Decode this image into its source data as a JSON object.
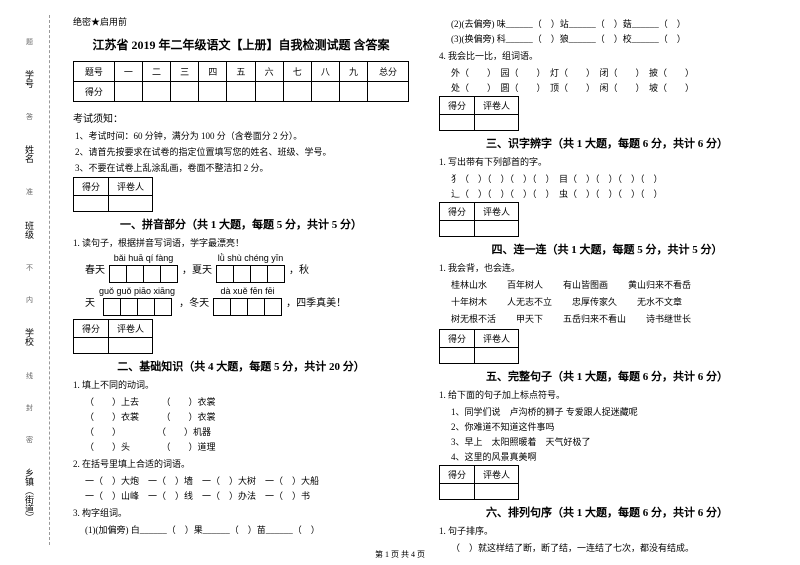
{
  "binding": {
    "fields": [
      "学号",
      "姓名",
      "班级",
      "学校",
      "乡镇（街道）"
    ],
    "marks": [
      "题",
      "答",
      "准",
      "不",
      "内",
      "线",
      "封",
      "密"
    ]
  },
  "secret": "绝密★启用前",
  "title": "江苏省 2019 年二年级语文【上册】自我检测试题 含答案",
  "scoreHeaders": [
    "题号",
    "一",
    "二",
    "三",
    "四",
    "五",
    "六",
    "七",
    "八",
    "九",
    "总分"
  ],
  "scoreRow2": "得分",
  "noticeTitle": "考试须知：",
  "notices": [
    "1、考试时间：60 分钟，满分为 100 分（含卷面分 2 分）。",
    "2、请首先按要求在试卷的指定位置填写您的姓名、班级、学号。",
    "3、不要在试卷上乱涂乱画，卷面不整洁扣 2 分。"
  ],
  "scorebox": {
    "col1": "得分",
    "col2": "评卷人"
  },
  "sections": {
    "s1": "一、拼音部分（共 1 大题，每题 5 分，共计 5 分）",
    "s2": "二、基础知识（共 4 大题，每题 5 分，共计 20 分）",
    "s3": "三、识字辨字（共 1 大题，每题 6 分，共计 6 分）",
    "s4": "四、连一连（共 1 大题，每题 5 分，共计 5 分）",
    "s5": "五、完整句子（共 1 大题，每题 6 分，共计 6 分）",
    "s6": "六、排列句序（共 1 大题，每题 6 分，共计 6 分）"
  },
  "q1": {
    "text": "1. 读句子，根据拼音写词语，学字最漂亮！",
    "pinyin1": "bǎi huā qí fàng",
    "pinyin2": "lǜ shù chéng yīn",
    "pinyin3": "guǒ guǒ piāo xiāng",
    "pinyin4": "dà xuě fēn fēi",
    "text_spring": "春天",
    "text_summer": "，夏天",
    "text_autumn": "，秋",
    "text_day": "天",
    "text_winter": "，冬天",
    "text_end": "，四季真美！"
  },
  "q2": {
    "item1": "1. 填上不同的动词。",
    "sub1a": "（　　）上去　　　（　　）衣裳",
    "sub1b": "（　　）衣裳　　　（　　）衣裳",
    "sub1c": "（　　）　　　　　（　　）机器",
    "sub1d": "（　　）头　　　　（　　）道理",
    "item2": "2. 在括号里填上合适的词语。",
    "sub2a": "一（　）大炮　一（　）墙　一（　）大树　一（　）大船",
    "sub2b": "一（　）山峰　一（　）线　一（　）办法　一（　）书",
    "item3": "3. 构字组词。",
    "sub3a": "(1)(加偏旁) 白______（　）果______（　）苗______（　）",
    "sub3b": "(2)(去偏旁) 味______（　）站______（　）菇______（　）",
    "sub3c": "(3)(换偏旁) 科______（　）狼______（　）校______（　）",
    "item4": "4. 我会比一比，组词语。",
    "sub4a": "外（　　）　园（　　）　灯（　　）　闭（　　）　披（　　）",
    "sub4b": "处（　　）　圆（　　）　顶（　　）　闲（　　）　坡（　　）"
  },
  "q3": {
    "text": "1. 写出带有下列部首的字。",
    "sub1": "犭（　）（　）（　）（　）　目（　）（　）（　）（　）",
    "sub2": "辶（　）（　）（　）（　）　虫（　）（　）（　）（　）"
  },
  "q4": {
    "text": "1. 我会背，也会连。",
    "row1": [
      "桂林山水",
      "百年树人",
      "有山皆图画",
      "黄山归来不看岳"
    ],
    "row2": [
      "十年树木",
      "人无志不立",
      "忠厚传家久",
      "无水不文章"
    ],
    "row3": [
      "树无根不活",
      "甲天下",
      "五岳归来不看山",
      "诗书继世长"
    ]
  },
  "q5": {
    "text": "1. 给下面的句子加上标点符号。",
    "sub1": "1、同学们说　卢沟桥的狮子 专爱跟人捉迷藏呢",
    "sub2": "2、你难道不知道这件事吗",
    "sub3": "3、早上　太阳照暖着　天气好极了",
    "sub4": "4、这里的风景真美啊"
  },
  "q6": {
    "text": "1. 句子排序。",
    "sub1": "（　）就这样结了断，断了结，一连结了七次，都没有结成。"
  },
  "footer": "第 1 页 共 4 页"
}
